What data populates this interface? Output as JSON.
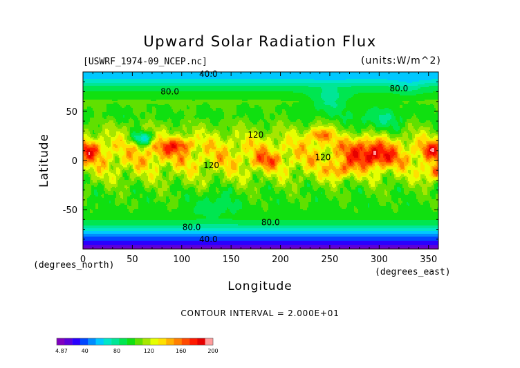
{
  "chart_data": {
    "type": "heatmap",
    "title": "Upward Solar Radiation Flux",
    "source_file": "[USWRF_1974-09_NCEP.nc]",
    "units": "(units:W/m^2)",
    "xlabel": "Longitude",
    "ylabel": "Latitude",
    "x_unit": "(degrees_east)",
    "y_unit": "(degrees_north)",
    "xlim": [
      0,
      360
    ],
    "ylim": [
      -90,
      90
    ],
    "x_ticks": [
      0,
      50,
      100,
      150,
      200,
      250,
      300,
      350
    ],
    "y_ticks": [
      -50,
      0,
      50
    ],
    "contour_interval": "CONTOUR INTERVAL = 2.000E+01",
    "contour_labels": [
      {
        "text": "40.0",
        "lon": 127,
        "lat": 88
      },
      {
        "text": "80.0",
        "lon": 88,
        "lat": 70
      },
      {
        "text": "80.0",
        "lon": 320,
        "lat": 73
      },
      {
        "text": "120",
        "lon": 175,
        "lat": 26
      },
      {
        "text": "120",
        "lon": 130,
        "lat": -5
      },
      {
        "text": "120",
        "lon": 243,
        "lat": 3
      },
      {
        "text": "80.0",
        "lon": 110,
        "lat": -68
      },
      {
        "text": "80.0",
        "lon": 190,
        "lat": -63
      },
      {
        "text": "40.0",
        "lon": 127,
        "lat": -80
      }
    ],
    "colorbar": {
      "min_label": "4.87",
      "tick_labels": [
        "40",
        "80",
        "120",
        "160",
        "200"
      ],
      "tick_values": [
        40,
        80,
        120,
        160,
        200
      ],
      "min": 4.87,
      "max": 200,
      "colors": [
        "#7f00bf",
        "#5b00d9",
        "#2a00ff",
        "#0047ff",
        "#008cff",
        "#00c8ff",
        "#00e6c8",
        "#00e696",
        "#00e650",
        "#10e010",
        "#60e000",
        "#a6e600",
        "#e6ff00",
        "#ffe000",
        "#ffb000",
        "#ff7f00",
        "#ff4a00",
        "#ff1a00",
        "#e60000",
        "#ff9c9c"
      ]
    },
    "field_summary": {
      "lat_band_means": [
        {
          "lat": 90,
          "value": 60
        },
        {
          "lat": 82,
          "value": 64
        },
        {
          "lat": 74,
          "value": 88
        },
        {
          "lat": 60,
          "value": 104
        },
        {
          "lat": 45,
          "value": 100
        },
        {
          "lat": 30,
          "value": 114
        },
        {
          "lat": 15,
          "value": 132
        },
        {
          "lat": 0,
          "value": 134
        },
        {
          "lat": -15,
          "value": 118
        },
        {
          "lat": -30,
          "value": 104
        },
        {
          "lat": -45,
          "value": 100
        },
        {
          "lat": -58,
          "value": 98
        },
        {
          "lat": -66,
          "value": 82
        },
        {
          "lat": -74,
          "value": 54
        },
        {
          "lat": -82,
          "value": 34
        },
        {
          "lat": -90,
          "value": 10
        }
      ],
      "hotspots": [
        {
          "lon": 5,
          "lat": 10,
          "value": 172,
          "r": 10
        },
        {
          "lon": 355,
          "lat": 10,
          "value": 172,
          "r": 10
        },
        {
          "lon": 358,
          "lat": -12,
          "value": 165,
          "r": 9
        },
        {
          "lon": 100,
          "lat": 16,
          "value": 168,
          "r": 8
        },
        {
          "lon": 80,
          "lat": 12,
          "value": 162,
          "r": 10
        },
        {
          "lon": 285,
          "lat": 10,
          "value": 172,
          "r": 16
        },
        {
          "lon": 300,
          "lat": 3,
          "value": 168,
          "r": 12
        },
        {
          "lon": 185,
          "lat": 0,
          "value": 160,
          "r": 10
        },
        {
          "lon": 240,
          "lat": 26,
          "value": 165,
          "r": 8
        },
        {
          "lon": 260,
          "lat": -10,
          "value": 162,
          "r": 9
        }
      ],
      "coldspots": [
        {
          "lon": 60,
          "lat": 22,
          "value": 74,
          "r": 8
        },
        {
          "lon": 135,
          "lat": -45,
          "value": 84,
          "r": 14
        },
        {
          "lon": 300,
          "lat": 38,
          "value": 86,
          "r": 18
        },
        {
          "lon": 250,
          "lat": 60,
          "value": 82,
          "r": 14
        },
        {
          "lon": 330,
          "lat": 75,
          "value": 74,
          "r": 10
        }
      ]
    }
  }
}
